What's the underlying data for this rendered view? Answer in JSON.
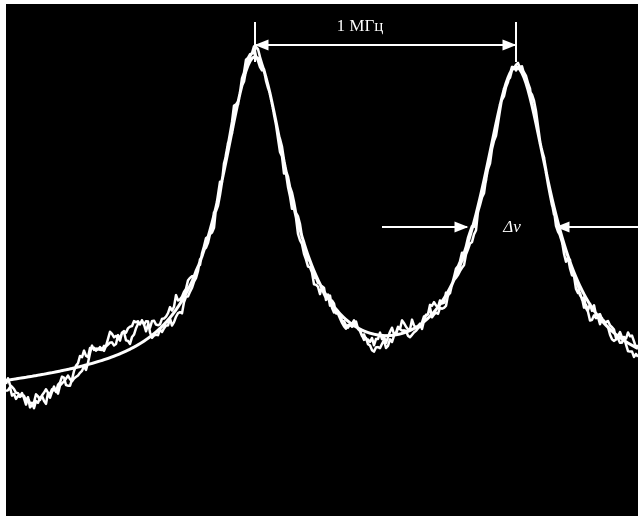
{
  "annotations": {
    "peak_spacing": "1 МГц",
    "linewidth": "Δν"
  }
}
